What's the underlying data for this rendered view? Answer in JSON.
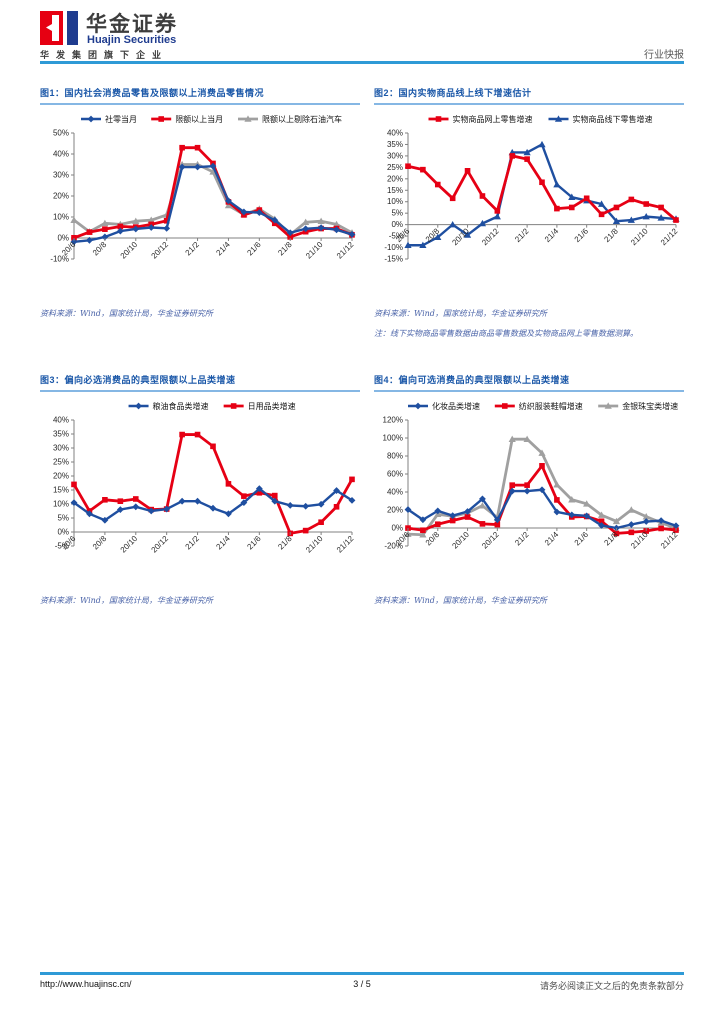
{
  "header": {
    "brand_cn": "华金证券",
    "brand_en": "Huajin Securities",
    "tagline": "华发集团旗下企业",
    "report_type": "行业快报"
  },
  "footer": {
    "url": "http://www.huajinsc.cn/",
    "page": "3 / 5",
    "disclaimer": "请务必阅读正文之后的免责条款部分"
  },
  "colors": {
    "accent_rule": "#2e9ad6",
    "title_blue": "#1a57a8",
    "series_blue": "#1f4fa0",
    "series_red": "#e60014",
    "series_gray": "#a0a0a0"
  },
  "chart_data": [
    {
      "type": "line",
      "title": "图1：国内社会消费品零售及限额以上消费品零售情况",
      "source": "资料来源：Wind，国家统计局，华金证券研究所",
      "categories": [
        "20/6",
        "20/7",
        "20/8",
        "20/9",
        "20/10",
        "20/11",
        "20/12",
        "21/1",
        "21/2",
        "21/3",
        "21/4",
        "21/5",
        "21/6",
        "21/7",
        "21/8",
        "21/9",
        "21/10",
        "21/11",
        "21/12"
      ],
      "xtick_every": 2,
      "ylim": [
        -10,
        50
      ],
      "ystep": 10,
      "grid": false,
      "legend_position": "top",
      "series": [
        {
          "name": "社零当月",
          "color": "#1f4fa0",
          "marker": "diamond",
          "width": 2.4,
          "values": [
            -1.8,
            -1.1,
            0.5,
            3.3,
            4.3,
            5.0,
            4.6,
            33.8,
            33.8,
            34.2,
            17.7,
            12.4,
            12.1,
            8.5,
            2.5,
            4.4,
            4.9,
            3.9,
            1.7
          ]
        },
        {
          "name": "限额以上当月",
          "color": "#e60014",
          "marker": "square",
          "width": 2.8,
          "values": [
            0.1,
            2.8,
            4.2,
            5.5,
            5.2,
            6.5,
            8.2,
            43.0,
            43.0,
            35.5,
            17.2,
            11.0,
            13.3,
            7.0,
            0.5,
            3.0,
            4.5,
            4.5,
            1.5
          ]
        },
        {
          "name": "限额以上剔除石油汽车",
          "color": "#a0a0a0",
          "marker": "triangle",
          "width": 2.8,
          "values": [
            8.5,
            3.0,
            7.0,
            6.5,
            8.0,
            8.5,
            11.0,
            35.0,
            35.0,
            31.5,
            15.5,
            11.2,
            13.8,
            9.0,
            1.5,
            7.5,
            8.0,
            6.5,
            2.5
          ]
        }
      ]
    },
    {
      "type": "line",
      "title": "图2：国内实物商品线上线下增速估计",
      "source": "资料来源：Wind，国家统计局，华金证券研究所",
      "note": "注：线下实物商品零售数据由商品零售数据及实物商品网上零售数据测算。",
      "categories": [
        "20/6",
        "20/7",
        "20/8",
        "20/9",
        "20/10",
        "20/11",
        "20/12",
        "21/1",
        "21/2",
        "21/3",
        "21/4",
        "21/5",
        "21/6",
        "21/7",
        "21/8",
        "21/9",
        "21/10",
        "21/11",
        "21/12"
      ],
      "xtick_every": 2,
      "ylim": [
        -15,
        40
      ],
      "ystep": 5,
      "grid": false,
      "legend_position": "top",
      "series": [
        {
          "name": "实物商品网上零售增速",
          "color": "#e60014",
          "marker": "square",
          "width": 2.8,
          "values": [
            25.5,
            24.0,
            17.5,
            11.5,
            23.5,
            12.5,
            6.0,
            30.0,
            28.6,
            18.5,
            7.0,
            7.5,
            11.5,
            4.5,
            7.5,
            11.0,
            9.0,
            7.5,
            2.0
          ]
        },
        {
          "name": "实物商品线下零售增速",
          "color": "#1f4fa0",
          "marker": "triangle",
          "width": 2.4,
          "values": [
            -9.0,
            -9.0,
            -5.5,
            0.0,
            -4.5,
            0.5,
            3.5,
            31.5,
            31.5,
            35.0,
            17.5,
            12.0,
            10.5,
            9.0,
            1.5,
            2.0,
            3.5,
            3.0,
            2.5
          ]
        }
      ]
    },
    {
      "type": "line",
      "title": "图3：偏向必选消费品的典型限额以上品类增速",
      "source": "资料来源：Wind，国家统计局，华金证券研究所",
      "categories": [
        "20/6",
        "20/7",
        "20/8",
        "20/9",
        "20/10",
        "20/11",
        "20/12",
        "21/1",
        "21/2",
        "21/3",
        "21/4",
        "21/5",
        "21/6",
        "21/7",
        "21/8",
        "21/9",
        "21/10",
        "21/11",
        "21/12"
      ],
      "xtick_every": 2,
      "ylim": [
        -5,
        40
      ],
      "ystep": 5,
      "grid": false,
      "legend_position": "top",
      "series": [
        {
          "name": "粮油食品类增速",
          "color": "#1f4fa0",
          "marker": "diamond",
          "width": 2.4,
          "values": [
            10.5,
            6.5,
            4.2,
            8.0,
            9.0,
            7.5,
            8.2,
            11.0,
            11.0,
            8.5,
            6.5,
            10.5,
            15.5,
            11.0,
            9.5,
            9.2,
            9.9,
            14.8,
            11.3
          ]
        },
        {
          "name": "日用品类增速",
          "color": "#e60014",
          "marker": "square",
          "width": 2.8,
          "values": [
            17.0,
            7.5,
            11.5,
            11.0,
            11.8,
            8.0,
            8.2,
            34.8,
            34.8,
            30.6,
            17.2,
            12.8,
            14.0,
            13.0,
            -0.5,
            0.5,
            3.5,
            9.0,
            18.8
          ]
        }
      ]
    },
    {
      "type": "line",
      "title": "图4：偏向可选消费品的典型限额以上品类增速",
      "source": "资料来源：Wind，国家统计局，华金证券研究所",
      "categories": [
        "20/6",
        "20/7",
        "20/8",
        "20/9",
        "20/10",
        "20/11",
        "20/12",
        "21/1",
        "21/2",
        "21/3",
        "21/4",
        "21/5",
        "21/6",
        "21/7",
        "21/8",
        "21/9",
        "21/10",
        "21/11",
        "21/12"
      ],
      "xtick_every": 2,
      "ylim": [
        -20,
        120
      ],
      "ystep": 20,
      "grid": false,
      "legend_position": "top",
      "series": [
        {
          "name": "化妆品类增速",
          "color": "#1f4fa0",
          "marker": "diamond",
          "width": 2.4,
          "values": [
            20.5,
            9.2,
            19.0,
            13.7,
            18.3,
            32.3,
            9.0,
            41.0,
            41.0,
            42.5,
            17.8,
            14.6,
            13.5,
            2.8,
            0.0,
            3.9,
            7.2,
            8.2,
            2.5
          ]
        },
        {
          "name": "纺织服装鞋帽增速",
          "color": "#e60014",
          "marker": "square",
          "width": 2.8,
          "values": [
            -0.1,
            -2.5,
            4.2,
            8.3,
            12.2,
            4.6,
            3.8,
            47.6,
            47.6,
            69.1,
            31.2,
            12.3,
            12.8,
            7.5,
            -6.0,
            -4.8,
            -3.3,
            -0.5,
            -2.3
          ]
        },
        {
          "name": "金银珠宝类增速",
          "color": "#a0a0a0",
          "marker": "triangle",
          "width": 2.8,
          "values": [
            -6.8,
            -7.5,
            15.3,
            13.1,
            16.7,
            24.8,
            11.6,
            98.7,
            98.7,
            83.2,
            48.1,
            31.5,
            26.9,
            14.3,
            7.4,
            20.1,
            12.6,
            5.9,
            -0.2
          ]
        }
      ]
    }
  ]
}
